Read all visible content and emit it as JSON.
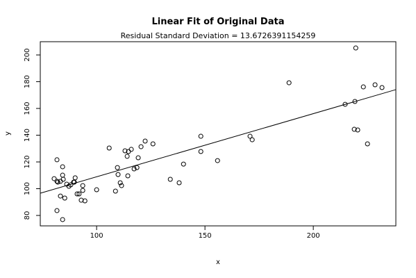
{
  "chart_data": {
    "type": "scatter",
    "title": "Linear Fit of Original Data",
    "subtitle": "Residual Standard Deviation =  13.6726391154259",
    "x_label": "x",
    "y_label": "y",
    "xlim": [
      74.0,
      238.1
    ],
    "ylim": [
      72.2,
      209.9
    ],
    "xticks": [
      100,
      150,
      200
    ],
    "yticks": [
      80,
      100,
      120,
      140,
      160,
      180,
      200
    ],
    "color": "#000000",
    "fit_line": {
      "intercept": 61.7,
      "slope": 0.472
    },
    "x": [
      80.4,
      81.7,
      81.7,
      82.1,
      81.7,
      83.3,
      83.3,
      84.3,
      84.3,
      84.6,
      84.3,
      85.3,
      86.2,
      87.2,
      88.1,
      89.4,
      90.1,
      89.7,
      91.0,
      91.9,
      92.9,
      93.6,
      93.6,
      94.6,
      100.0,
      105.8,
      108.7,
      109.6,
      109.9,
      110.9,
      111.5,
      113.1,
      114.4,
      114.7,
      114.1,
      116.0,
      117.3,
      118.6,
      119.2,
      120.5,
      122.4,
      126.0,
      134.0,
      138.1,
      140.1,
      148.1,
      148.1,
      155.8,
      170.8,
      171.8,
      188.8,
      214.7,
      219.2,
      218.9,
      220.5,
      219.6,
      223.1,
      225.0,
      228.5,
      231.7
    ],
    "values": [
      107.5,
      105.5,
      121.6,
      104.9,
      83.6,
      105.5,
      94.5,
      116.4,
      110.1,
      107.0,
      76.9,
      93.0,
      103.4,
      101.8,
      102.9,
      104.9,
      108.1,
      104.9,
      96.1,
      96.1,
      91.4,
      102.3,
      98.7,
      90.9,
      99.2,
      130.4,
      98.2,
      115.8,
      110.6,
      104.4,
      102.3,
      128.3,
      109.6,
      127.8,
      124.2,
      129.4,
      114.8,
      115.8,
      123.1,
      131.4,
      135.6,
      133.5,
      107.0,
      104.4,
      118.4,
      139.2,
      127.8,
      121.0,
      139.2,
      136.6,
      179.2,
      163.1,
      165.2,
      144.4,
      143.9,
      205.2,
      176.1,
      133.5,
      177.7,
      175.6
    ]
  }
}
